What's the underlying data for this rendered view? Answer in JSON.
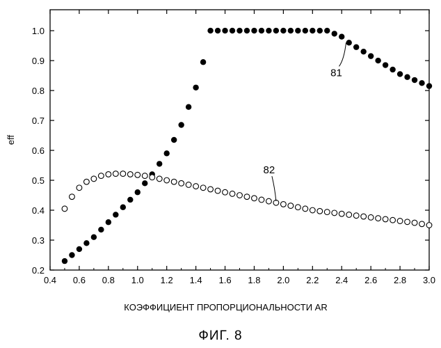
{
  "chart_data": {
    "type": "scatter",
    "xlabel": "КОЭФФИЦИЕНТ ПРОПОРЦИОНАЛЬНОСТИ AR",
    "ylabel": "eff",
    "xlim": [
      0.4,
      3.0
    ],
    "ylim": [
      0.2,
      1.07
    ],
    "xticks": [
      "0.4",
      "0.6",
      "0.8",
      "1.0",
      "1.2",
      "1.4",
      "1.6",
      "1.8",
      "2.0",
      "2.2",
      "2.4",
      "2.6",
      "2.8",
      "3.0"
    ],
    "yticks": [
      "0.2",
      "0.3",
      "0.4",
      "0.5",
      "0.6",
      "0.7",
      "0.8",
      "0.9",
      "1.0"
    ],
    "grid": false,
    "legend": "none",
    "series": [
      {
        "marker": "filled-circle",
        "color": "#000000",
        "annotation": "81",
        "annotation_point": [
          2.43,
          0.96
        ],
        "x": [
          0.5,
          0.55,
          0.6,
          0.65,
          0.7,
          0.75,
          0.8,
          0.85,
          0.9,
          0.95,
          1.0,
          1.05,
          1.1,
          1.15,
          1.2,
          1.25,
          1.3,
          1.35,
          1.4,
          1.45,
          1.5,
          1.55,
          1.6,
          1.65,
          1.7,
          1.75,
          1.8,
          1.85,
          1.9,
          1.95,
          2.0,
          2.05,
          2.1,
          2.15,
          2.2,
          2.25,
          2.3,
          2.35,
          2.4,
          2.45,
          2.5,
          2.55,
          2.6,
          2.65,
          2.7,
          2.75,
          2.8,
          2.85,
          2.9,
          2.95,
          3.0
        ],
        "y": [
          0.23,
          0.25,
          0.27,
          0.29,
          0.31,
          0.335,
          0.36,
          0.385,
          0.41,
          0.435,
          0.46,
          0.49,
          0.52,
          0.555,
          0.59,
          0.635,
          0.685,
          0.745,
          0.81,
          0.895,
          1.0,
          1.0,
          1.0,
          1.0,
          1.0,
          1.0,
          1.0,
          1.0,
          1.0,
          1.0,
          1.0,
          1.0,
          1.0,
          1.0,
          1.0,
          1.0,
          1.0,
          0.99,
          0.98,
          0.96,
          0.945,
          0.93,
          0.915,
          0.9,
          0.885,
          0.87,
          0.855,
          0.845,
          0.835,
          0.825,
          0.815
        ]
      },
      {
        "marker": "open-circle",
        "color": "#000000",
        "annotation": "82",
        "annotation_point": [
          1.95,
          0.43
        ],
        "x": [
          0.5,
          0.55,
          0.6,
          0.65,
          0.7,
          0.75,
          0.8,
          0.85,
          0.9,
          0.95,
          1.0,
          1.05,
          1.1,
          1.15,
          1.2,
          1.25,
          1.3,
          1.35,
          1.4,
          1.45,
          1.5,
          1.55,
          1.6,
          1.65,
          1.7,
          1.75,
          1.8,
          1.85,
          1.9,
          1.95,
          2.0,
          2.05,
          2.1,
          2.15,
          2.2,
          2.25,
          2.3,
          2.35,
          2.4,
          2.45,
          2.5,
          2.55,
          2.6,
          2.65,
          2.7,
          2.75,
          2.8,
          2.85,
          2.9,
          2.95,
          3.0
        ],
        "y": [
          0.405,
          0.445,
          0.475,
          0.495,
          0.505,
          0.515,
          0.52,
          0.522,
          0.522,
          0.52,
          0.518,
          0.515,
          0.51,
          0.505,
          0.5,
          0.495,
          0.49,
          0.485,
          0.48,
          0.475,
          0.47,
          0.465,
          0.46,
          0.455,
          0.45,
          0.445,
          0.44,
          0.435,
          0.43,
          0.425,
          0.42,
          0.415,
          0.41,
          0.405,
          0.4,
          0.397,
          0.394,
          0.391,
          0.388,
          0.385,
          0.382,
          0.379,
          0.376,
          0.373,
          0.37,
          0.367,
          0.364,
          0.361,
          0.358,
          0.354,
          0.35
        ]
      }
    ]
  },
  "caption": "ФИГ. 8"
}
